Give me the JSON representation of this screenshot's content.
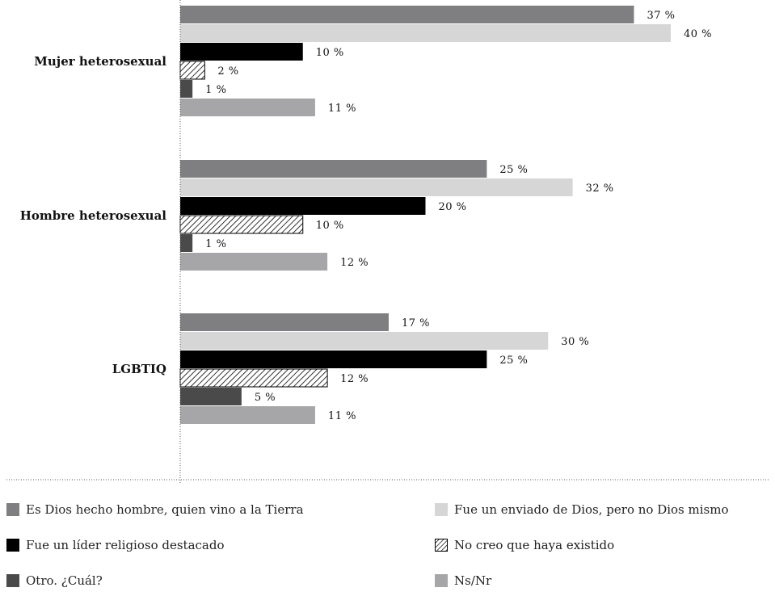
{
  "chart_data": {
    "type": "bar",
    "orientation": "horizontal",
    "categories": [
      "Mujer heterosexual",
      "Hombre heterosexual",
      "LGBTIQ"
    ],
    "series": [
      {
        "name": "Es Dios hecho hombre, quien vino a la Tierra",
        "values": [
          37,
          25,
          17
        ],
        "color": "#7f7f81",
        "pattern": "solid"
      },
      {
        "name": "Fue un enviado de Dios, pero no Dios mismo",
        "values": [
          40,
          32,
          30
        ],
        "color": "#d6d6d6",
        "pattern": "solid"
      },
      {
        "name": "Fue un líder religioso destacado",
        "values": [
          10,
          20,
          25
        ],
        "color": "#000000",
        "pattern": "solid"
      },
      {
        "name": "No creo que haya existido",
        "values": [
          2,
          10,
          12
        ],
        "color": "#000000",
        "pattern": "hatch"
      },
      {
        "name": "Otro. ¿Cuál?",
        "values": [
          1,
          1,
          5
        ],
        "color": "#4a4a4a",
        "pattern": "solid"
      },
      {
        "name": "Ns/Nr",
        "values": [
          11,
          12,
          11
        ],
        "color": "#a6a6a8",
        "pattern": "solid"
      }
    ],
    "value_labels": [
      [
        "37 %",
        "40 %",
        "10 %",
        "2 %",
        "1 %",
        "11 %"
      ],
      [
        "25 %",
        "32 %",
        "20 %",
        "10 %",
        "1 %",
        "12 %"
      ],
      [
        "17 %",
        "30 %",
        "25 %",
        "12 %",
        "5 %",
        "11 %"
      ]
    ],
    "xlim": [
      0,
      40
    ],
    "grid": false,
    "legend_position": "bottom",
    "title": "",
    "xlabel": "",
    "ylabel": ""
  }
}
